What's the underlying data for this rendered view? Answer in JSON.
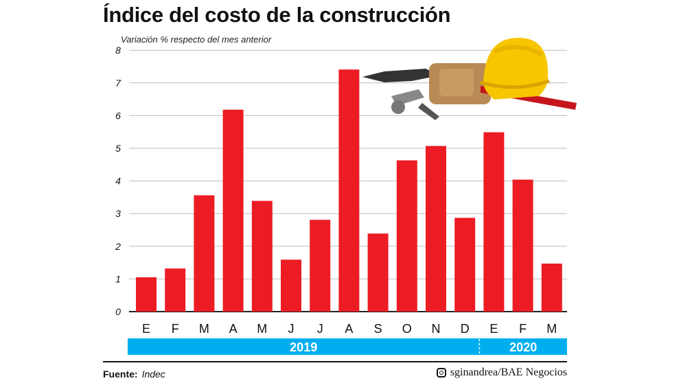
{
  "title": "Índice del costo de la construcción",
  "chart_data": {
    "type": "bar",
    "title": "Índice del costo de la construcción",
    "ylabel": "Variación % respecto del mes anterior",
    "categories": [
      "E",
      "F",
      "M",
      "A",
      "M",
      "J",
      "J",
      "A",
      "S",
      "O",
      "N",
      "D",
      "E",
      "F",
      "M"
    ],
    "groups": [
      {
        "label": "2019",
        "count": 12
      },
      {
        "label": "2020",
        "count": 3
      }
    ],
    "values": [
      1.05,
      1.32,
      3.56,
      6.18,
      3.39,
      1.59,
      2.81,
      7.41,
      2.39,
      4.63,
      5.07,
      2.87,
      5.49,
      4.04,
      1.47
    ],
    "yticks": [
      0,
      1,
      2,
      3,
      4,
      5,
      6,
      7,
      8
    ],
    "ylim": [
      0,
      8
    ],
    "grid": true,
    "colors": {
      "bar": "#ec1c24",
      "band": "#00aeef",
      "grid": "#bbbbbb"
    }
  },
  "footer": {
    "source_label": "Fuente:",
    "source": "Indec",
    "credit": "sginandrea/BAE Negocios",
    "credit_icon": "instagram-icon"
  }
}
